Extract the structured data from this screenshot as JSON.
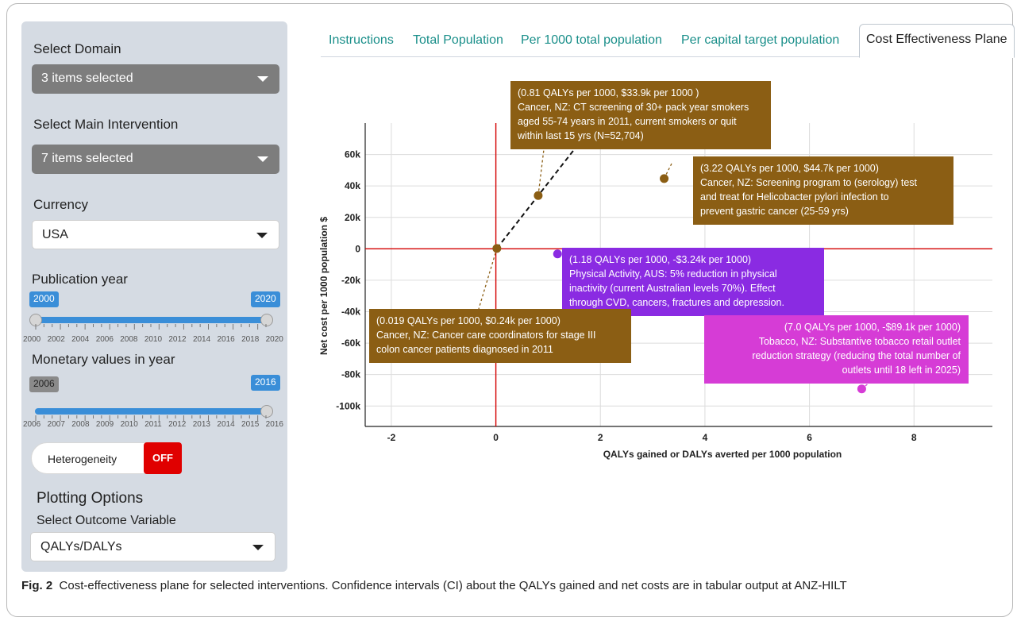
{
  "sidebar": {
    "domain_label": "Select Domain",
    "domain_value": "3 items selected",
    "intervention_label": "Select Main Intervention",
    "intervention_value": "7 items selected",
    "currency_label": "Currency",
    "currency_value": "USA",
    "pub_year_label": "Publication year",
    "pub_year_min": "2000",
    "pub_year_max": "2020",
    "pub_year_ticks": [
      "2000",
      "2002",
      "2004",
      "2006",
      "2008",
      "2010",
      "2012",
      "2014",
      "2016",
      "2018",
      "2020"
    ],
    "monetary_label": "Monetary values in year",
    "monetary_min": "2006",
    "monetary_max": "2016",
    "monetary_ticks": [
      "2006",
      "2007",
      "2008",
      "2009",
      "2010",
      "2011",
      "2012",
      "2013",
      "2014",
      "2015",
      "2016"
    ],
    "heterogeneity_label": "Heterogeneity",
    "heterogeneity_state": "OFF",
    "plotting_options_label": "Plotting Options",
    "outcome_label": "Select Outcome Variable",
    "outcome_value": "QALYs/DALYs"
  },
  "tabs": [
    {
      "label": "Instructions",
      "active": false
    },
    {
      "label": "Total Population",
      "active": false
    },
    {
      "label": "Per 1000 total population",
      "active": false
    },
    {
      "label": "Per capital target population",
      "active": false
    },
    {
      "label": "Cost Effectiveness Plane",
      "active": true
    }
  ],
  "chart_data": {
    "type": "scatter",
    "xlabel": "QALYs gained or DALYs averted per 1000 population",
    "ylabel": "Net cost per 1000 population $",
    "xlim": [
      -2.5,
      9.5
    ],
    "ylim": [
      -113,
      80
    ],
    "xticks": [
      -2,
      0,
      2,
      4,
      6,
      8
    ],
    "yticks": [
      60,
      40,
      20,
      0,
      -20,
      -40,
      -60,
      -80,
      -100
    ],
    "ytick_labels": [
      "60k",
      "40k",
      "20k",
      "0",
      "-20k",
      "-40k",
      "-60k",
      "-80k",
      "-100k"
    ],
    "grid": true,
    "points": [
      {
        "x": 0.81,
        "y": 33.9,
        "color": "#8b5e14",
        "lines": [
          "(0.81 QALYs per 1000, $33.9k per 1000 )",
          "Cancer, NZ: CT screening of 30+ pack year smokers",
          "aged 55-74 years in 2011, current smokers or quit",
          "within last 15 yrs (N=52,704)"
        ]
      },
      {
        "x": 3.22,
        "y": 44.7,
        "color": "#8b5e14",
        "lines": [
          "(3.22 QALYs per 1000, $44.7k per 1000)",
          "Cancer, NZ: Screening program to (serology) test",
          "and treat for Helicobacter pylori infection to",
          "prevent gastric cancer (25-59 yrs)"
        ]
      },
      {
        "x": 1.18,
        "y": -3.24,
        "color": "#8a2be2",
        "lines": [
          "(1.18 QALYs per 1000, -$3.24k per 1000)",
          "Physical Activity, AUS: 5% reduction in physical",
          "inactivity (current Australian levels 70%). Effect",
          "through CVD, cancers, fractures and depression."
        ]
      },
      {
        "x": 0.019,
        "y": 0.24,
        "color": "#8b5e14",
        "lines": [
          "(0.019 QALYs per 1000, $0.24k per 1000)",
          "Cancer, NZ: Cancer care coordinators for stage III",
          "colon cancer patients diagnosed in 2011"
        ]
      },
      {
        "x": 7.0,
        "y": -89.1,
        "color": "#d63cd6",
        "lines": [
          "(7.0 QALYs per 1000, -$89.1k per 1000)",
          "Tobacco, NZ: Substantive tobacco retail outlet",
          "reduction strategy (reducing the total number of",
          "outlets until 18 left in 2025)"
        ]
      }
    ]
  },
  "caption": {
    "fig_label": "Fig. 2",
    "text": "Cost-effectiveness plane for selected interventions. Confidence intervals (CI) about the QALYs gained and net costs are in tabular output at ANZ-HILT"
  }
}
